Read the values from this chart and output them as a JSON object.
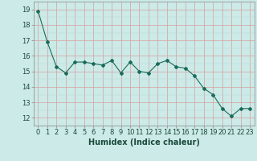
{
  "x": [
    0,
    1,
    2,
    3,
    4,
    5,
    6,
    7,
    8,
    9,
    10,
    11,
    12,
    13,
    14,
    15,
    16,
    17,
    18,
    19,
    20,
    21,
    22,
    23
  ],
  "y": [
    18.9,
    16.9,
    15.3,
    14.9,
    15.6,
    15.6,
    15.5,
    15.4,
    15.7,
    14.9,
    15.6,
    15.0,
    14.9,
    15.5,
    15.7,
    15.3,
    15.2,
    14.7,
    13.9,
    13.5,
    12.6,
    12.1,
    12.6,
    12.6
  ],
  "line_color": "#1a6b5a",
  "marker": "D",
  "marker_size": 2,
  "bg_color": "#cceae7",
  "grid_color_major": "#d4a0a0",
  "grid_color_minor": "#c8dcd8",
  "xlabel": "Humidex (Indice chaleur)",
  "xlim": [
    -0.5,
    23.5
  ],
  "ylim": [
    11.5,
    19.5
  ],
  "yticks": [
    12,
    13,
    14,
    15,
    16,
    17,
    18,
    19
  ],
  "xticks": [
    0,
    1,
    2,
    3,
    4,
    5,
    6,
    7,
    8,
    9,
    10,
    11,
    12,
    13,
    14,
    15,
    16,
    17,
    18,
    19,
    20,
    21,
    22,
    23
  ],
  "xlabel_fontsize": 7,
  "tick_fontsize": 6,
  "spine_color": "#888888",
  "tick_color": "#1a4a3a"
}
